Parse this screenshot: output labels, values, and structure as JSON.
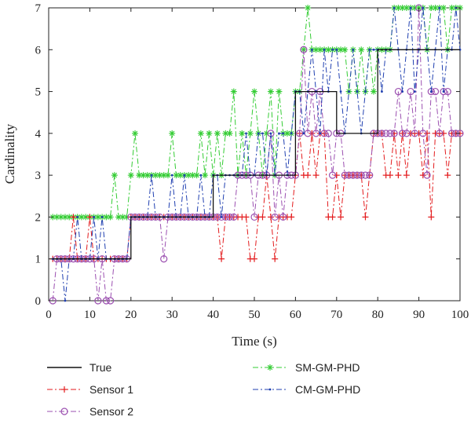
{
  "chart_data": {
    "type": "line",
    "xlabel": "Time (s)",
    "ylabel": "Cardinality",
    "xlim": [
      0,
      100
    ],
    "ylim": [
      0,
      7
    ],
    "xticks": [
      0,
      10,
      20,
      30,
      40,
      50,
      60,
      70,
      80,
      90,
      100
    ],
    "yticks": [
      0,
      1,
      2,
      3,
      4,
      5,
      6,
      7
    ],
    "grid": false,
    "legend_position": "bottom",
    "series": [
      {
        "name": "True",
        "color": "#111111",
        "style": "solid",
        "marker": "none",
        "step": true,
        "x": [
          1,
          20,
          20,
          40,
          40,
          60,
          60,
          70,
          70,
          80,
          80,
          100
        ],
        "y": [
          1,
          1,
          2,
          2,
          3,
          3,
          5,
          5,
          4,
          4,
          6,
          6
        ]
      },
      {
        "name": "Sensor 1",
        "color": "#e31a1c",
        "style": "dashdot",
        "marker": "plus",
        "x": [
          1,
          2,
          3,
          4,
          5,
          6,
          7,
          8,
          9,
          10,
          11,
          12,
          13,
          14,
          15,
          16,
          17,
          18,
          19,
          20,
          21,
          22,
          23,
          24,
          25,
          26,
          27,
          28,
          29,
          30,
          31,
          32,
          33,
          34,
          35,
          36,
          37,
          38,
          39,
          40,
          41,
          42,
          43,
          44,
          45,
          46,
          47,
          48,
          49,
          50,
          51,
          52,
          53,
          54,
          55,
          56,
          57,
          58,
          59,
          60,
          61,
          62,
          63,
          64,
          65,
          66,
          67,
          68,
          69,
          70,
          71,
          72,
          73,
          74,
          75,
          76,
          77,
          78,
          79,
          80,
          81,
          82,
          83,
          84,
          85,
          86,
          87,
          88,
          89,
          90,
          91,
          92,
          93,
          94,
          95,
          96,
          97,
          98,
          99,
          100
        ],
        "y": [
          1,
          1,
          1,
          1,
          1,
          2,
          1,
          1,
          1,
          2,
          1,
          1,
          1,
          1,
          1,
          1,
          1,
          1,
          1,
          2,
          2,
          2,
          2,
          2,
          2,
          2,
          2,
          2,
          2,
          2,
          2,
          2,
          2,
          2,
          2,
          2,
          2,
          2,
          2,
          2,
          2,
          1,
          2,
          2,
          2,
          2,
          2,
          2,
          1,
          1,
          2,
          2,
          3,
          2,
          1,
          2,
          2,
          2,
          2,
          3,
          4,
          3,
          3,
          4,
          3,
          4,
          4,
          2,
          2,
          3,
          2,
          3,
          3,
          3,
          3,
          3,
          2,
          3,
          4,
          4,
          4,
          3,
          3,
          4,
          3,
          4,
          3,
          4,
          4,
          4,
          3,
          4,
          2,
          4,
          4,
          4,
          3,
          4,
          4,
          4
        ]
      },
      {
        "name": "Sensor 2",
        "color": "#9b4fb0",
        "style": "dashdot",
        "marker": "circle",
        "x": [
          1,
          2,
          3,
          4,
          5,
          6,
          7,
          8,
          9,
          10,
          11,
          12,
          13,
          14,
          15,
          16,
          17,
          18,
          19,
          20,
          21,
          22,
          23,
          24,
          25,
          26,
          27,
          28,
          29,
          30,
          31,
          32,
          33,
          34,
          35,
          36,
          37,
          38,
          39,
          40,
          41,
          42,
          43,
          44,
          45,
          46,
          47,
          48,
          49,
          50,
          51,
          52,
          53,
          54,
          55,
          56,
          57,
          58,
          59,
          60,
          61,
          62,
          63,
          64,
          65,
          66,
          67,
          68,
          69,
          70,
          71,
          72,
          73,
          74,
          75,
          76,
          77,
          78,
          79,
          80,
          81,
          82,
          83,
          84,
          85,
          86,
          87,
          88,
          89,
          90,
          91,
          92,
          93,
          94,
          95,
          96,
          97,
          98,
          99,
          100
        ],
        "y": [
          0,
          1,
          1,
          1,
          1,
          1,
          1,
          1,
          1,
          1,
          1,
          0,
          1,
          0,
          0,
          1,
          1,
          1,
          1,
          2,
          2,
          2,
          2,
          2,
          2,
          2,
          2,
          1,
          2,
          2,
          2,
          2,
          2,
          2,
          2,
          2,
          2,
          2,
          2,
          2,
          2,
          2,
          2,
          2,
          2,
          3,
          3,
          3,
          3,
          2,
          3,
          3,
          3,
          4,
          2,
          3,
          2,
          3,
          3,
          3,
          4,
          6,
          4,
          5,
          4,
          5,
          4,
          4,
          3,
          4,
          4,
          3,
          3,
          3,
          3,
          3,
          3,
          3,
          4,
          4,
          4,
          4,
          4,
          4,
          5,
          4,
          4,
          5,
          4,
          7,
          4,
          3,
          5,
          5,
          4,
          5,
          5,
          4,
          4,
          4
        ]
      },
      {
        "name": "SM-GM-PHD",
        "color": "#33cc33",
        "style": "dashdot",
        "marker": "asterisk",
        "x": [
          1,
          2,
          3,
          4,
          5,
          6,
          7,
          8,
          9,
          10,
          11,
          12,
          13,
          14,
          15,
          16,
          17,
          18,
          19,
          20,
          21,
          22,
          23,
          24,
          25,
          26,
          27,
          28,
          29,
          30,
          31,
          32,
          33,
          34,
          35,
          36,
          37,
          38,
          39,
          40,
          41,
          42,
          43,
          44,
          45,
          46,
          47,
          48,
          49,
          50,
          51,
          52,
          53,
          54,
          55,
          56,
          57,
          58,
          59,
          60,
          61,
          62,
          63,
          64,
          65,
          66,
          67,
          68,
          69,
          70,
          71,
          72,
          73,
          74,
          75,
          76,
          77,
          78,
          79,
          80,
          81,
          82,
          83,
          84,
          85,
          86,
          87,
          88,
          89,
          90,
          91,
          92,
          93,
          94,
          95,
          96,
          97,
          98,
          99,
          100
        ],
        "y": [
          2,
          2,
          2,
          2,
          2,
          2,
          2,
          2,
          2,
          2,
          2,
          2,
          2,
          2,
          2,
          3,
          2,
          2,
          2,
          3,
          4,
          3,
          3,
          3,
          3,
          3,
          3,
          3,
          3,
          4,
          3,
          3,
          3,
          3,
          3,
          3,
          4,
          3,
          4,
          3,
          4,
          3,
          4,
          4,
          5,
          3,
          4,
          3,
          4,
          5,
          4,
          3,
          4,
          5,
          3,
          5,
          4,
          4,
          4,
          5,
          5,
          6,
          7,
          6,
          6,
          6,
          6,
          6,
          6,
          6,
          6,
          6,
          5,
          6,
          5,
          6,
          5,
          6,
          5,
          6,
          6,
          6,
          6,
          7,
          7,
          7,
          7,
          7,
          7,
          7,
          7,
          6,
          7,
          7,
          7,
          7,
          6,
          7,
          7,
          7
        ]
      },
      {
        "name": "CM-GM-PHD",
        "color": "#1f3fb0",
        "style": "dashdot",
        "marker": "dot",
        "x": [
          1,
          2,
          3,
          4,
          5,
          6,
          7,
          8,
          9,
          10,
          11,
          12,
          13,
          14,
          15,
          16,
          17,
          18,
          19,
          20,
          21,
          22,
          23,
          24,
          25,
          26,
          27,
          28,
          29,
          30,
          31,
          32,
          33,
          34,
          35,
          36,
          37,
          38,
          39,
          40,
          41,
          42,
          43,
          44,
          45,
          46,
          47,
          48,
          49,
          50,
          51,
          52,
          53,
          54,
          55,
          56,
          57,
          58,
          59,
          60,
          61,
          62,
          63,
          64,
          65,
          66,
          67,
          68,
          69,
          70,
          71,
          72,
          73,
          74,
          75,
          76,
          77,
          78,
          79,
          80,
          81,
          82,
          83,
          84,
          85,
          86,
          87,
          88,
          89,
          90,
          91,
          92,
          93,
          94,
          95,
          96,
          97,
          98,
          99,
          100
        ],
        "y": [
          1,
          1,
          1,
          0,
          1,
          1,
          2,
          1,
          1,
          1,
          2,
          1,
          2,
          1,
          1,
          1,
          1,
          1,
          1,
          2,
          2,
          2,
          2,
          2,
          3,
          2,
          2,
          2,
          2,
          3,
          2,
          2,
          3,
          2,
          2,
          2,
          3,
          2,
          2,
          3,
          3,
          2,
          3,
          3,
          3,
          3,
          3,
          4,
          3,
          3,
          4,
          4,
          3,
          4,
          3,
          4,
          4,
          3,
          4,
          5,
          5,
          4,
          5,
          6,
          5,
          4,
          6,
          5,
          6,
          6,
          5,
          4,
          5,
          6,
          5,
          4,
          5,
          6,
          6,
          6,
          5,
          6,
          6,
          7,
          6,
          5,
          6,
          7,
          5,
          6,
          7,
          6,
          5,
          6,
          7,
          5,
          6,
          6,
          7,
          6
        ]
      }
    ]
  }
}
